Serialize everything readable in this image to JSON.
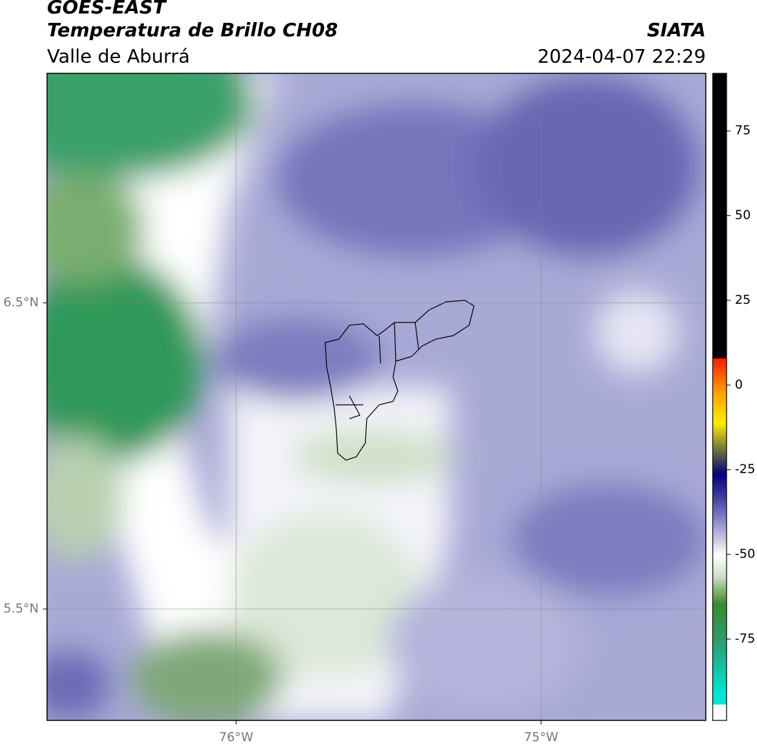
{
  "chart_data": {
    "type": "map",
    "title": "GOES-EAST",
    "subtitle": "Temperatura de Brillo CH08",
    "region": "Valle de Aburrá",
    "source": "SIATA",
    "timestamp": "2024-04-07 22:29",
    "xlim": [
      -76.62,
      -74.46
    ],
    "ylim": [
      5.136,
      7.25
    ],
    "xticks": [
      {
        "value": -76,
        "label": "76°W"
      },
      {
        "value": -75,
        "label": "75°W"
      }
    ],
    "yticks": [
      {
        "value": 6.5,
        "label": "6.5°N"
      },
      {
        "value": 5.5,
        "label": "5.5°N"
      }
    ],
    "colorbar_lim": [
      -99,
      92
    ],
    "colorbar_ticks": [
      75,
      50,
      25,
      0,
      -25,
      -50,
      -75
    ],
    "grid": true
  }
}
